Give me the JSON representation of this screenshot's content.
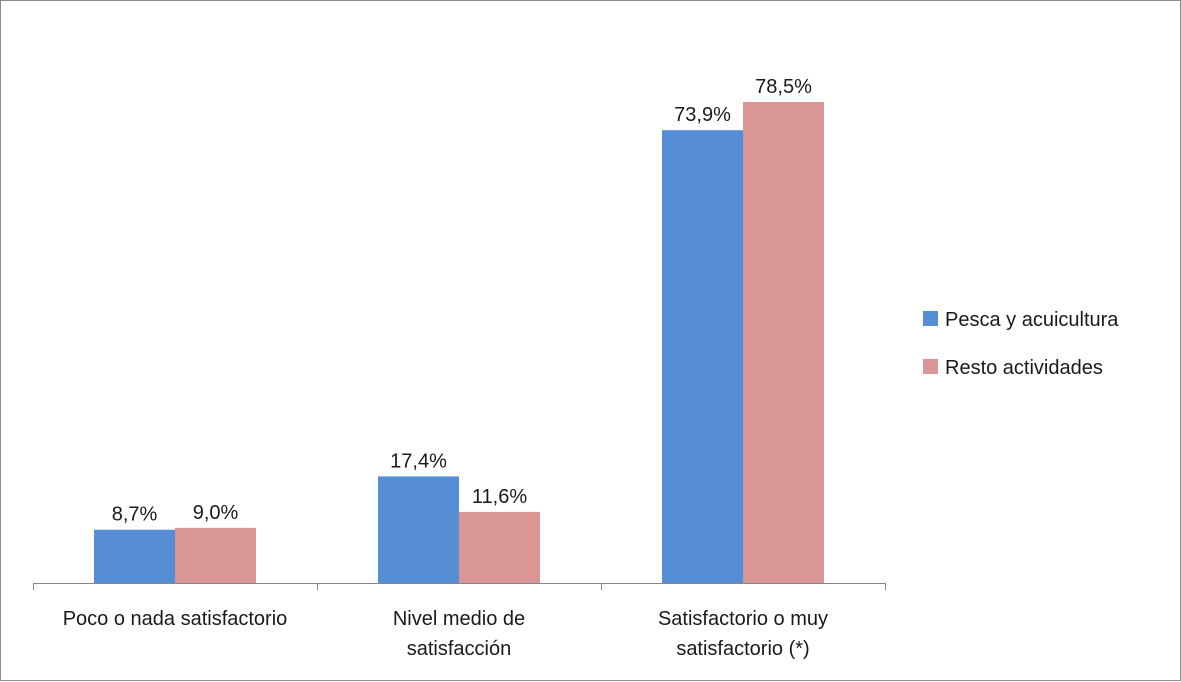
{
  "chart_data": {
    "type": "bar",
    "categories": [
      [
        "Poco o nada satisfactorio"
      ],
      [
        "Nivel medio de",
        "satisfacción"
      ],
      [
        "Satisfactorio o muy",
        "satisfactorio (*)"
      ]
    ],
    "series": [
      {
        "name": "Pesca y acuicultura",
        "color": "#558ed5",
        "values": [
          8.7,
          17.4,
          73.9
        ],
        "labels": [
          "8,7%",
          "17,4%",
          "73,9%"
        ]
      },
      {
        "name": "Resto actividades",
        "color": "#d99694",
        "values": [
          9.0,
          11.6,
          78.5
        ],
        "labels": [
          "9,0%",
          "11,6%",
          "78,5%"
        ]
      }
    ],
    "ylim": [
      0,
      85
    ],
    "grid": false,
    "legend": "right"
  }
}
